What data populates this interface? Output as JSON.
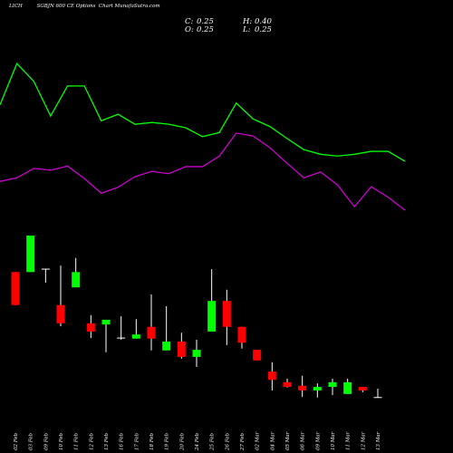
{
  "chart_data": {
    "type": "candlestick",
    "title": "LICH         SGBJN 600 CE Options  Chart MunafaSutra.com",
    "stats": [
      {
        "key": "C:",
        "value": {
          "value": 0.25,
          "label": "0.25"
        }
      },
      {
        "key": "H:",
        "value": {
          "value": 0.4,
          "label": "0.40"
        }
      },
      {
        "key": "O:",
        "value": {
          "value": 0.25,
          "label": "0.25"
        }
      },
      {
        "key": "L:",
        "value": {
          "value": 0.25,
          "label": "0.25"
        }
      }
    ],
    "categories": [
      "02 Feb",
      "03 Feb",
      "09 Feb",
      "10 Feb",
      "11 Feb",
      "12 Feb",
      "13 Feb",
      "16 Feb",
      "17 Feb",
      "18 Feb",
      "19 Feb",
      "20 Feb",
      "24 Feb",
      "25 Feb",
      "26 Feb",
      "27 Feb",
      "02 Mar",
      "04 Mar",
      "05 Mar",
      "06 Mar",
      "09 Mar",
      "10 Mar",
      "11 Mar",
      "12 Mar",
      "13 Mar"
    ],
    "open": [
      2.38,
      2.38,
      2.43,
      1.82,
      2.12,
      1.51,
      1.49,
      1.26,
      1.25,
      1.45,
      1.05,
      1.2,
      0.94,
      1.37,
      1.89,
      1.45,
      1.06,
      0.69,
      0.51,
      0.45,
      0.37,
      0.43,
      0.31,
      0.43,
      0.25
    ],
    "high": [
      2.38,
      3.0,
      2.43,
      2.49,
      2.62,
      1.65,
      1.57,
      1.63,
      1.58,
      2.0,
      1.8,
      1.35,
      1.23,
      2.43,
      2.08,
      1.45,
      1.06,
      0.85,
      0.57,
      0.62,
      0.49,
      0.57,
      0.57,
      0.43,
      0.4
    ],
    "low": [
      1.82,
      2.38,
      2.2,
      1.46,
      2.12,
      1.26,
      1.02,
      1.23,
      1.25,
      1.05,
      1.05,
      0.91,
      0.77,
      1.37,
      1.14,
      1.08,
      0.88,
      0.37,
      0.42,
      0.26,
      0.25,
      0.29,
      0.31,
      0.34,
      0.25
    ],
    "close": [
      1.82,
      3.0,
      2.43,
      1.51,
      2.38,
      1.37,
      1.57,
      1.26,
      1.32,
      1.25,
      1.2,
      0.94,
      1.06,
      1.89,
      1.45,
      1.18,
      0.88,
      0.55,
      0.43,
      0.37,
      0.43,
      0.51,
      0.51,
      0.37,
      0.25
    ],
    "up_color": "#00ff00",
    "down_color": "#ff0000",
    "series": [
      {
        "color": "#00ff00",
        "values": [
          5.22,
          5.92,
          5.62,
          5.03,
          5.54,
          5.54,
          4.95,
          5.06,
          4.89,
          4.92,
          4.89,
          4.83,
          4.68,
          4.75,
          5.25,
          4.98,
          4.85,
          4.65,
          4.46,
          4.38,
          4.35,
          4.38,
          4.43,
          4.43,
          4.26
        ]
      },
      {
        "color": "#cc00cc",
        "values": [
          3.92,
          3.98,
          4.14,
          4.11,
          4.18,
          3.97,
          3.72,
          3.82,
          4.0,
          4.09,
          4.05,
          4.17,
          4.17,
          4.35,
          4.74,
          4.69,
          4.49,
          4.23,
          3.98,
          4.08,
          3.86,
          3.49,
          3.83,
          3.65,
          3.43
        ]
      }
    ],
    "ylim": [
      0,
      7
    ]
  }
}
